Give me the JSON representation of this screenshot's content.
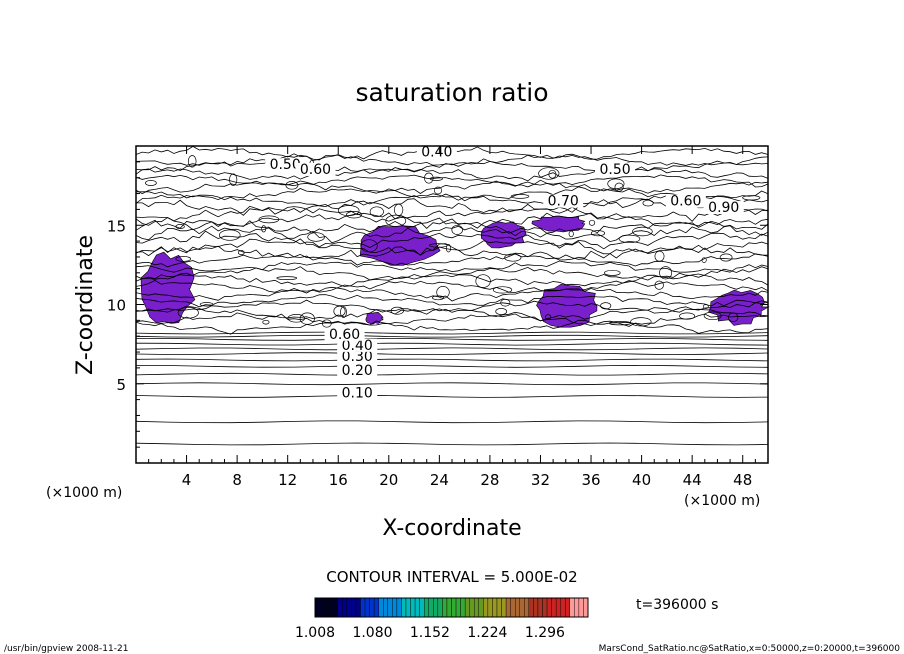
{
  "chart_data": {
    "type": "contour",
    "title": "saturation ratio",
    "xlabel": "X-coordinate",
    "ylabel": "Z-coordinate",
    "x_unit": "(×1000 m)",
    "z_unit": "(×1000 m)",
    "xlim": [
      0,
      50
    ],
    "ylim": [
      0,
      20
    ],
    "x_ticks": [
      "4",
      "8",
      "12",
      "16",
      "20",
      "24",
      "28",
      "32",
      "36",
      "40",
      "44",
      "48"
    ],
    "y_ticks": [
      "5",
      "10",
      "15"
    ],
    "contour_interval_text": "CONTOUR INTERVAL = 5.000E-02",
    "contour_labels": [
      {
        "text": "0.10",
        "x": 17.5,
        "z": 4.2
      },
      {
        "text": "0.20",
        "x": 17.5,
        "z": 5.6
      },
      {
        "text": "0.30",
        "x": 17.5,
        "z": 6.5
      },
      {
        "text": "0.40",
        "x": 17.5,
        "z": 7.2
      },
      {
        "text": "0.60",
        "x": 16.5,
        "z": 7.9
      },
      {
        "text": "0.50",
        "x": 11.8,
        "z": 18.6
      },
      {
        "text": "0.60",
        "x": 14.2,
        "z": 18.3
      },
      {
        "text": "0.40",
        "x": 23.8,
        "z": 19.4
      },
      {
        "text": "0.50",
        "x": 37.9,
        "z": 18.3
      },
      {
        "text": "0.70",
        "x": 33.8,
        "z": 16.3
      },
      {
        "text": "0.60",
        "x": 43.5,
        "z": 16.3
      },
      {
        "text": "0.90",
        "x": 46.5,
        "z": 15.9
      }
    ],
    "shaded_regions_ratio_above_1": [
      {
        "x": [
          0.5,
          4.5
        ],
        "z": [
          8.8,
          13.2
        ]
      },
      {
        "x": [
          17.5,
          23.8
        ],
        "z": [
          12.6,
          14.9
        ]
      },
      {
        "x": [
          27.2,
          30.8
        ],
        "z": [
          13.6,
          15.2
        ]
      },
      {
        "x": [
          31.5,
          35.5
        ],
        "z": [
          14.6,
          15.6
        ]
      },
      {
        "x": [
          31.5,
          36.5
        ],
        "z": [
          8.7,
          11.2
        ]
      },
      {
        "x": [
          45.5,
          49.8
        ],
        "z": [
          8.8,
          10.9
        ]
      },
      {
        "x": [
          18.2,
          19.5
        ],
        "z": [
          8.8,
          9.5
        ]
      }
    ],
    "colorbar": {
      "tick_labels": [
        "1.008",
        "1.080",
        "1.152",
        "1.224",
        "1.296"
      ],
      "range": [
        1.008,
        1.35
      ],
      "colors": [
        "#000020",
        "#00008b",
        "#0033cc",
        "#0088dd",
        "#00bbbb",
        "#11aa66",
        "#33aa33",
        "#669922",
        "#999922",
        "#aa6633",
        "#aa3322",
        "#cc2222",
        "#ff9999"
      ]
    },
    "time_text": "t=396000 s",
    "shade_color": "#7a1fcc"
  },
  "footer": {
    "left": "/usr/bin/gpview  2008-11-21",
    "right": "MarsCond_SatRatio.nc@SatRatio,x=0:50000,z=0:20000,t=396000"
  }
}
